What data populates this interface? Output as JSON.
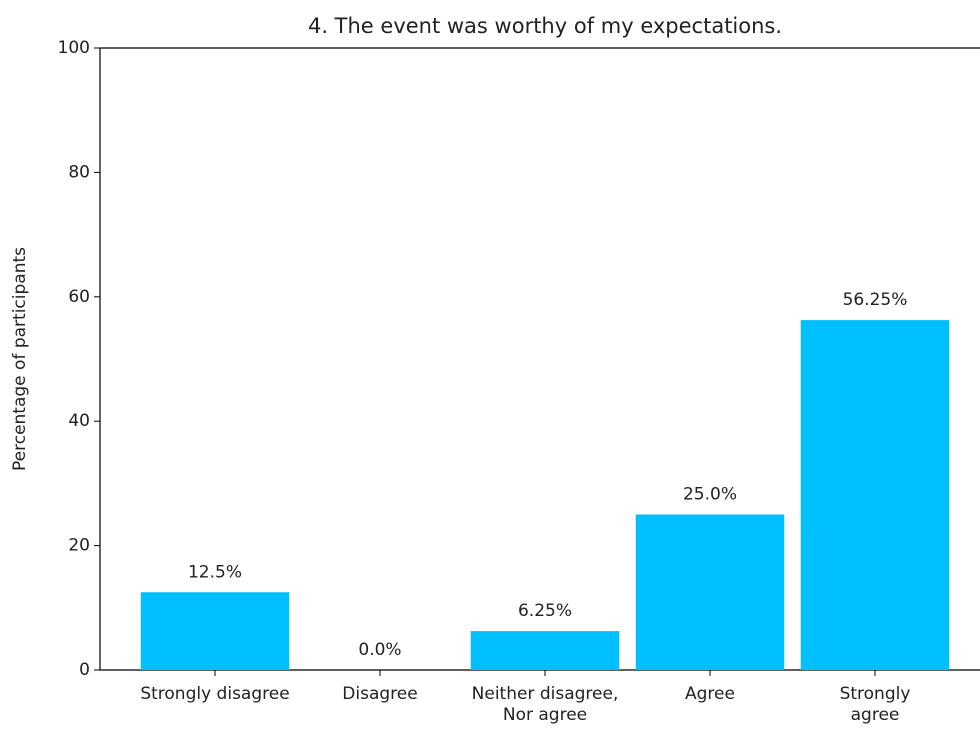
{
  "chart_data": {
    "type": "bar",
    "title": "4. The event was worthy of my expectations.",
    "categories": [
      "Strongly disagree",
      "Disagree",
      "Neither disagree,\nNor agree",
      "Agree",
      "Strongly agree"
    ],
    "values": [
      12.5,
      0.0,
      6.25,
      25.0,
      56.25
    ],
    "value_labels": [
      "12.5%",
      "0.0%",
      "6.25%",
      "25.0%",
      "56.25%"
    ],
    "color": "#00bfff",
    "ylabel": "Percentage of participants",
    "ylim": [
      0,
      100
    ],
    "yticks": [
      0,
      20,
      40,
      60,
      80,
      100
    ],
    "grid": false
  }
}
